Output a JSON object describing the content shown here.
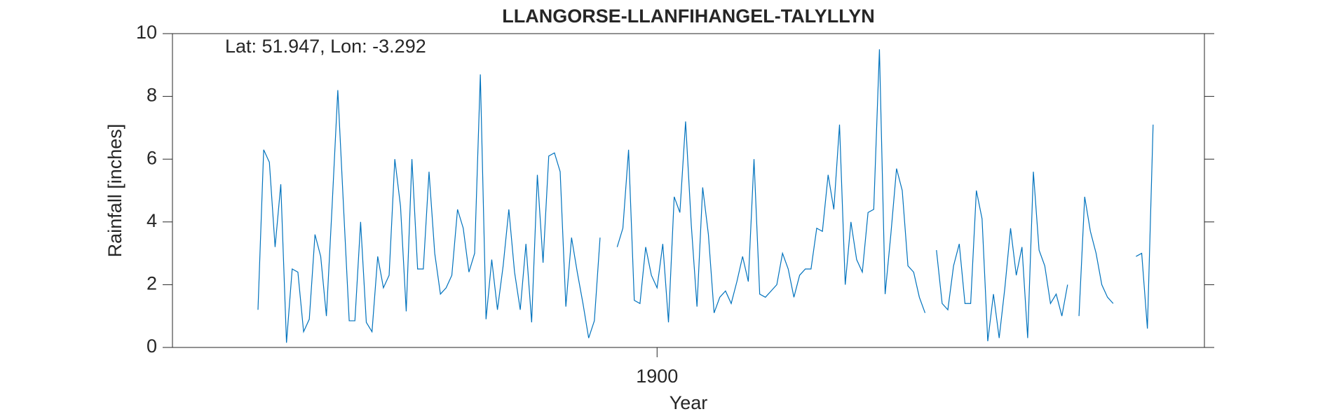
{
  "chart_data": {
    "type": "line",
    "title": "LLANGORSE-LLANFIHANGEL-TALYLLYN",
    "annotation": "Lat: 51.947, Lon: -3.292",
    "xlabel": "Year",
    "ylabel": "Rainfall [inches]",
    "color": "#0072bd",
    "x": [
      1830,
      1831,
      1832,
      1833,
      1834,
      1835,
      1836,
      1837,
      1838,
      1839,
      1840,
      1841,
      1842,
      1843,
      1844,
      1845,
      1846,
      1847,
      1848,
      1849,
      1850,
      1851,
      1852,
      1853,
      1854,
      1855,
      1856,
      1857,
      1858,
      1859,
      1860,
      1861,
      1862,
      1863,
      1864,
      1865,
      1866,
      1867,
      1868,
      1869,
      1870,
      1871,
      1872,
      1873,
      1874,
      1875,
      1876,
      1877,
      1878,
      1879,
      1880,
      1881,
      1882,
      1883,
      1884,
      1885,
      1886,
      1887,
      1888,
      1889,
      1890,
      1891,
      1892,
      1893,
      1894,
      1895,
      1896,
      1897,
      1898,
      1899,
      1900,
      1901,
      1902,
      1903,
      1904,
      1905,
      1906,
      1907,
      1908,
      1909,
      1910,
      1911,
      1912,
      1913,
      1914,
      1915,
      1916,
      1917,
      1918,
      1919,
      1920,
      1921,
      1922,
      1923,
      1924,
      1925,
      1926,
      1927,
      1928,
      1929,
      1930,
      1931,
      1932,
      1933,
      1934,
      1935,
      1936,
      1937,
      1938,
      1939,
      1940,
      1941,
      1942,
      1943,
      1944,
      1945,
      1946,
      1947,
      1948,
      1949,
      1950,
      1951,
      1952,
      1953,
      1954,
      1955,
      1956,
      1957,
      1958,
      1959,
      1960,
      1961,
      1962,
      1963,
      1964,
      1965,
      1966,
      1967,
      1968,
      1969,
      1970,
      1971,
      1972,
      1973,
      1974,
      1975,
      1976,
      1977,
      1978,
      1979,
      1980,
      1981,
      1982,
      1983,
      1984,
      1985,
      1986,
      1987
    ],
    "values": [
      1.2,
      6.3,
      5.9,
      3.2,
      5.2,
      0.15,
      2.5,
      2.4,
      0.5,
      0.9,
      3.6,
      2.9,
      1.0,
      4.5,
      8.2,
      4.5,
      0.85,
      0.85,
      4.0,
      0.8,
      0.5,
      2.9,
      1.9,
      2.3,
      6.0,
      4.5,
      1.15,
      6.0,
      2.5,
      2.5,
      5.6,
      3.0,
      1.7,
      1.9,
      2.3,
      4.4,
      3.8,
      2.4,
      3.0,
      8.7,
      0.9,
      2.8,
      1.2,
      2.6,
      4.4,
      2.4,
      1.2,
      3.3,
      0.8,
      5.5,
      2.7,
      6.1,
      6.2,
      5.6,
      1.3,
      3.5,
      2.4,
      1.4,
      0.3,
      0.85,
      3.5,
      null,
      null,
      3.2,
      3.8,
      6.3,
      1.5,
      1.4,
      3.2,
      2.3,
      1.9,
      3.3,
      0.8,
      4.8,
      4.3,
      7.2,
      3.9,
      1.3,
      5.1,
      3.6,
      1.1,
      1.6,
      1.8,
      1.4,
      2.1,
      2.9,
      2.1,
      6.0,
      1.7,
      1.6,
      1.8,
      2.0,
      3.0,
      2.5,
      1.6,
      2.3,
      2.5,
      2.5,
      3.8,
      3.7,
      5.5,
      4.4,
      7.1,
      2.0,
      4.0,
      2.8,
      2.4,
      4.3,
      4.4,
      9.5,
      1.7,
      3.6,
      5.7,
      5.0,
      2.6,
      2.4,
      1.6,
      1.1,
      null,
      3.1,
      1.4,
      1.2,
      2.6,
      3.3,
      1.4,
      1.4,
      5.0,
      4.1,
      0.2,
      1.7,
      0.3,
      1.9,
      3.8,
      2.3,
      3.2,
      0.3,
      5.6,
      3.1,
      2.6,
      1.4,
      1.7,
      1.0,
      2.0,
      null,
      1.0,
      4.8,
      3.7,
      3.0,
      2.0,
      1.6,
      1.4,
      null,
      null,
      null,
      2.9,
      3.0,
      0.6,
      7.1
    ],
    "xlim": [
      1815,
      1996
    ],
    "xticks": [
      1900
    ],
    "ylim": [
      0,
      10
    ],
    "yticks": [
      0,
      2,
      4,
      6,
      8,
      10
    ]
  }
}
